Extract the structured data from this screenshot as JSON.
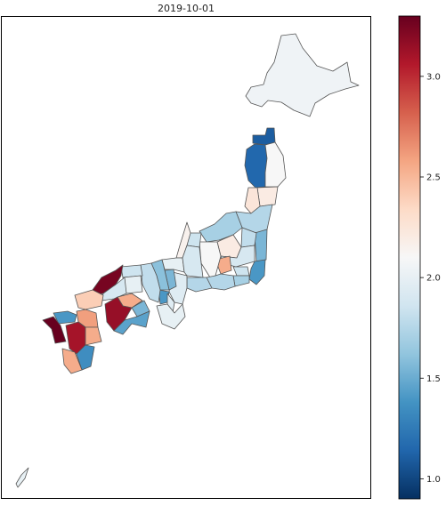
{
  "chart_data": {
    "type": "choropleth",
    "title": "2019-10-01",
    "colormap": "RdBu_r",
    "value_range": [
      0.9,
      3.3
    ],
    "colorbar": {
      "ticks": [
        1.0,
        1.5,
        2.0,
        2.5,
        3.0
      ],
      "tick_labels": [
        "1.0",
        "1.5",
        "2.0",
        "2.5",
        "3.0"
      ]
    },
    "regions": [
      {
        "name": "Hokkaido",
        "value": 2.05
      },
      {
        "name": "Aomori",
        "value": 1.1
      },
      {
        "name": "Akita",
        "value": 1.15
      },
      {
        "name": "Iwate",
        "value": 2.1
      },
      {
        "name": "Miyagi",
        "value": 2.2
      },
      {
        "name": "Yamagata",
        "value": 2.25
      },
      {
        "name": "Fukushima",
        "value": 1.75
      },
      {
        "name": "Niigata",
        "value": 1.7
      },
      {
        "name": "Ibaraki",
        "value": 1.55
      },
      {
        "name": "Tochigi",
        "value": 1.8
      },
      {
        "name": "Gunma",
        "value": 2.2
      },
      {
        "name": "Saitama",
        "value": 1.9
      },
      {
        "name": "Chiba",
        "value": 1.4
      },
      {
        "name": "Tokyo",
        "value": 1.85
      },
      {
        "name": "Kanagawa",
        "value": 1.7
      },
      {
        "name": "Yamanashi",
        "value": 2.55
      },
      {
        "name": "Nagano",
        "value": 2.1
      },
      {
        "name": "Shizuoka",
        "value": 1.75
      },
      {
        "name": "Toyama",
        "value": 1.85
      },
      {
        "name": "Ishikawa",
        "value": 2.15
      },
      {
        "name": "Fukui",
        "value": 2.0
      },
      {
        "name": "Gifu",
        "value": 1.9
      },
      {
        "name": "Aichi",
        "value": 1.75
      },
      {
        "name": "Mie",
        "value": 1.95
      },
      {
        "name": "Shiga",
        "value": 1.55
      },
      {
        "name": "Kyoto",
        "value": 1.6
      },
      {
        "name": "Osaka",
        "value": 1.4
      },
      {
        "name": "Hyogo",
        "value": 1.8
      },
      {
        "name": "Nara",
        "value": 1.95
      },
      {
        "name": "Wakayama",
        "value": 2.0
      },
      {
        "name": "Tottori",
        "value": 1.85
      },
      {
        "name": "Shimane",
        "value": 3.25
      },
      {
        "name": "Okayama",
        "value": 2.0
      },
      {
        "name": "Hiroshima",
        "value": 1.9
      },
      {
        "name": "Yamaguchi",
        "value": 2.4
      },
      {
        "name": "Tokushima",
        "value": 1.55
      },
      {
        "name": "Kagawa",
        "value": 2.55
      },
      {
        "name": "Ehime",
        "value": 3.15
      },
      {
        "name": "Kochi",
        "value": 1.45
      },
      {
        "name": "Fukuoka",
        "value": 2.6
      },
      {
        "name": "Saga",
        "value": 1.4
      },
      {
        "name": "Nagasaki",
        "value": 3.3
      },
      {
        "name": "Kumamoto",
        "value": 3.1
      },
      {
        "name": "Oita",
        "value": 2.55
      },
      {
        "name": "Miyazaki",
        "value": 1.35
      },
      {
        "name": "Kagoshima",
        "value": 2.55
      },
      {
        "name": "Okinawa",
        "value": 2.0
      }
    ]
  }
}
